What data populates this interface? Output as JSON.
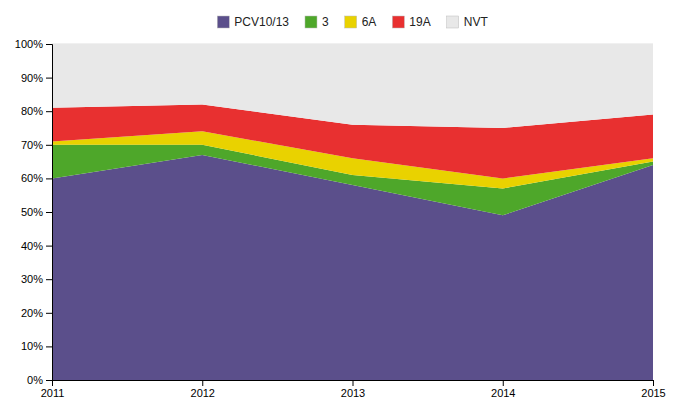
{
  "chart_data": {
    "type": "area",
    "stacked": true,
    "x": [
      2011,
      2012,
      2013,
      2014,
      2015
    ],
    "series": [
      {
        "name": "PCV10/13",
        "color": "#5b4f8b",
        "values": [
          60,
          67,
          58,
          49,
          64
        ]
      },
      {
        "name": "3",
        "color": "#4ea72a",
        "values": [
          10,
          3,
          3,
          8,
          1
        ]
      },
      {
        "name": "6A",
        "color": "#e9d200",
        "values": [
          1,
          4,
          5,
          3,
          1
        ]
      },
      {
        "name": "19A",
        "color": "#e83030",
        "values": [
          10,
          8,
          10,
          15,
          13
        ]
      },
      {
        "name": "NVT",
        "color": "#e8e8e8",
        "values": [
          19,
          18,
          24,
          25,
          21
        ]
      }
    ],
    "xlim": [
      2011,
      2015
    ],
    "xticks": [
      2011,
      2012,
      2013,
      2014,
      2015
    ],
    "ylim": [
      0,
      100
    ],
    "yticks": [
      {
        "value": 0,
        "label": "0%"
      },
      {
        "value": 10,
        "label": "10%"
      },
      {
        "value": 20,
        "label": "20%"
      },
      {
        "value": 30,
        "label": "30%"
      },
      {
        "value": 40,
        "label": "40%"
      },
      {
        "value": 50,
        "label": "50%"
      },
      {
        "value": 60,
        "label": "60%"
      },
      {
        "value": 70,
        "label": "70%"
      },
      {
        "value": 80,
        "label": "80%"
      },
      {
        "value": 90,
        "label": "90%"
      },
      {
        "value": 100,
        "label": "100%"
      }
    ],
    "grid": true,
    "legend": "top"
  }
}
